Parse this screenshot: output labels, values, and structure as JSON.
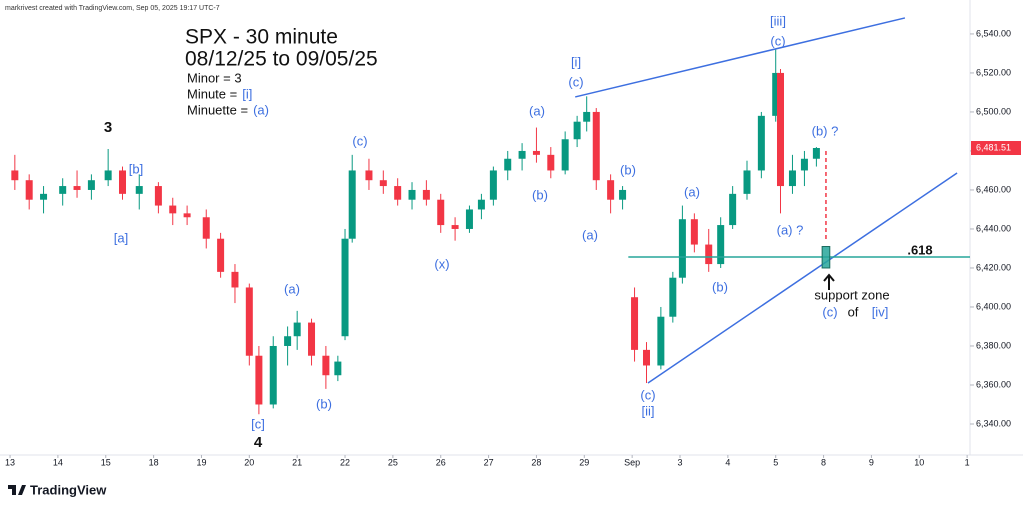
{
  "header": {
    "credit": "markrivest created with TradingView.com, Sep 05, 2025 19:17 UTC-7"
  },
  "chart_data": {
    "type": "candlestick",
    "title": "SPX - 30 minute",
    "subtitle": "08/12/25 to 09/05/25",
    "notes": [
      {
        "text": "Minor = 3"
      },
      {
        "text": "Minute =",
        "wave": "[i]"
      },
      {
        "text": "Minuette =",
        "wave": "(a)"
      }
    ],
    "up_color": "#089981",
    "down_color": "#f23645",
    "wave_color": "#3d6fe0",
    "x": [
      0.1,
      0.4,
      0.7,
      1.1,
      1.4,
      1.7,
      2.05,
      2.35,
      2.7,
      3.1,
      3.4,
      3.7,
      4.1,
      4.4,
      4.7,
      5.0,
      5.2,
      5.5,
      5.8,
      6.0,
      6.3,
      6.6,
      6.85,
      7.0,
      7.15,
      7.5,
      7.8,
      8.1,
      8.4,
      8.7,
      9.0,
      9.3,
      9.6,
      9.85,
      10.1,
      10.4,
      10.7,
      11.0,
      11.3,
      11.6,
      11.85,
      12.05,
      12.25,
      12.55,
      12.8,
      13.05,
      13.3,
      13.6,
      13.85,
      14.05,
      14.3,
      14.6,
      14.85,
      15.1,
      15.4,
      15.7,
      16.0,
      16.1,
      16.35,
      16.6,
      16.85
    ],
    "open": [
      6470,
      6465,
      6455,
      6458,
      6462,
      6460,
      6465,
      6470,
      6458,
      6462,
      6452,
      6448,
      6446,
      6435,
      6418,
      6410,
      6375,
      6350,
      6380,
      6385,
      6392,
      6375,
      6365,
      6385,
      6435,
      6470,
      6465,
      6462,
      6455,
      6460,
      6455,
      6442,
      6440,
      6450,
      6455,
      6470,
      6476,
      6480,
      6478,
      6470,
      6486,
      6495,
      6500,
      6465,
      6455,
      6405,
      6378,
      6370,
      6395,
      6415,
      6445,
      6432,
      6422,
      6442,
      6458,
      6470,
      6498,
      6520,
      6462,
      6470,
      6476
    ],
    "high": [
      6478,
      6468,
      6462,
      6466,
      6470,
      6468,
      6481,
      6472,
      6468,
      6464,
      6456,
      6452,
      6450,
      6438,
      6422,
      6412,
      6380,
      6385,
      6390,
      6398,
      6394,
      6380,
      6375,
      6440,
      6478,
      6476,
      6470,
      6466,
      6464,
      6465,
      6458,
      6446,
      6452,
      6458,
      6472,
      6480,
      6484,
      6492,
      6482,
      6490,
      6498,
      6508,
      6502,
      6468,
      6462,
      6410,
      6382,
      6400,
      6418,
      6452,
      6448,
      6440,
      6446,
      6462,
      6475,
      6500,
      6532,
      6522,
      6478,
      6480,
      6482
    ],
    "low": [
      6460,
      6450,
      6448,
      6452,
      6456,
      6455,
      6462,
      6455,
      6450,
      6448,
      6442,
      6442,
      6430,
      6415,
      6402,
      6370,
      6345,
      6348,
      6370,
      6378,
      6370,
      6358,
      6362,
      6383,
      6433,
      6460,
      6458,
      6452,
      6450,
      6452,
      6438,
      6434,
      6438,
      6445,
      6452,
      6465,
      6470,
      6474,
      6466,
      6468,
      6482,
      6490,
      6460,
      6448,
      6450,
      6372,
      6361,
      6368,
      6392,
      6412,
      6428,
      6418,
      6420,
      6440,
      6455,
      6466,
      6495,
      6448,
      6458,
      6462,
      6472
    ],
    "close": [
      6465,
      6455,
      6458,
      6462,
      6460,
      6465,
      6470,
      6458,
      6462,
      6452,
      6448,
      6446,
      6435,
      6418,
      6410,
      6375,
      6350,
      6380,
      6385,
      6392,
      6375,
      6365,
      6372,
      6435,
      6470,
      6465,
      6462,
      6455,
      6460,
      6455,
      6442,
      6440,
      6450,
      6455,
      6470,
      6476,
      6480,
      6478,
      6470,
      6486,
      6495,
      6500,
      6465,
      6455,
      6460,
      6378,
      6370,
      6395,
      6415,
      6445,
      6432,
      6422,
      6442,
      6458,
      6470,
      6498,
      6520,
      6462,
      6470,
      6476,
      6481.51
    ],
    "last_price": {
      "value": 6481.51,
      "label": "6,481.51"
    },
    "xlim": [
      -0.21,
      20.06
    ],
    "ylim": [
      6324.1,
      6557.4
    ],
    "xticks": [
      {
        "value": 0,
        "label": "13"
      },
      {
        "value": 1,
        "label": "14"
      },
      {
        "value": 2,
        "label": "15"
      },
      {
        "value": 3,
        "label": "18"
      },
      {
        "value": 4,
        "label": "19"
      },
      {
        "value": 5,
        "label": "20"
      },
      {
        "value": 6,
        "label": "21"
      },
      {
        "value": 7,
        "label": "22"
      },
      {
        "value": 8,
        "label": "25"
      },
      {
        "value": 9,
        "label": "26"
      },
      {
        "value": 10,
        "label": "27"
      },
      {
        "value": 11,
        "label": "28"
      },
      {
        "value": 12,
        "label": "29"
      },
      {
        "value": 13,
        "label": "Sep"
      },
      {
        "value": 14,
        "label": "3"
      },
      {
        "value": 15,
        "label": "4"
      },
      {
        "value": 16,
        "label": "5"
      },
      {
        "value": 17,
        "label": "8"
      },
      {
        "value": 18,
        "label": "9"
      },
      {
        "value": 19,
        "label": "10"
      },
      {
        "value": 20,
        "label": "1"
      }
    ],
    "yticks": [
      {
        "value": 6340,
        "label": "6,340.00"
      },
      {
        "value": 6360,
        "label": "6,360.00"
      },
      {
        "value": 6380,
        "label": "6,380.00"
      },
      {
        "value": 6400,
        "label": "6,400.00"
      },
      {
        "value": 6420,
        "label": "6,420.00"
      },
      {
        "value": 6440,
        "label": "6,440.00"
      },
      {
        "value": 6460,
        "label": "6,460.00"
      },
      {
        "value": 6480,
        "label": "6,480.00"
      },
      {
        "value": 6500,
        "label": "6,500.00"
      },
      {
        "value": 6520,
        "label": "6,520.00"
      },
      {
        "value": 6540,
        "label": "6,540.00"
      }
    ],
    "lines": [
      {
        "x": [
          11.81,
          18.7
        ],
        "y": [
          6507.7,
          6548.2
        ],
        "color": "#3d6fe0",
        "dashed": false
      },
      {
        "x": [
          13.33,
          19.79
        ],
        "y": [
          6361,
          6468.7
        ],
        "color": "#3d6fe0",
        "dashed": false
      },
      {
        "x": [
          12.92,
          20.06
        ],
        "y": [
          6425.6,
          6425.6
        ],
        "color": "#26a69a",
        "dashed": false
      },
      {
        "x": [
          17.05,
          17.05
        ],
        "y": [
          6480,
          6434
        ],
        "color": "#f23645",
        "dashed": true
      }
    ],
    "zone": {
      "x": [
        16.97,
        17.13
      ],
      "y": [
        6420,
        6431
      ],
      "color": "#26a69a"
    },
    "wave_labels": [
      {
        "text": "3",
        "color": "#111111"
      },
      {
        "text": "[b]",
        "color": "#3d6fe0"
      },
      {
        "text": "[a]",
        "color": "#3d6fe0"
      },
      {
        "text": "(a)",
        "color": "#3d6fe0"
      },
      {
        "text": "(b)",
        "color": "#3d6fe0"
      },
      {
        "text": "[c]",
        "color": "#3d6fe0"
      },
      {
        "text": "4",
        "color": "#111111"
      },
      {
        "text": "(c)",
        "color": "#3d6fe0"
      },
      {
        "text": "(x)",
        "color": "#3d6fe0"
      },
      {
        "text": "(a)",
        "color": "#3d6fe0"
      },
      {
        "text": "(b)",
        "color": "#3d6fe0"
      },
      {
        "text": "[i]",
        "color": "#3d6fe0"
      },
      {
        "text": "(c)",
        "color": "#3d6fe0"
      },
      {
        "text": "(b)",
        "color": "#3d6fe0"
      },
      {
        "text": "(a)",
        "color": "#3d6fe0"
      },
      {
        "text": "(a)",
        "color": "#3d6fe0"
      },
      {
        "text": "(b)",
        "color": "#3d6fe0"
      },
      {
        "text": "(c)",
        "color": "#3d6fe0"
      },
      {
        "text": "[ii]",
        "color": "#3d6fe0"
      },
      {
        "text": "[iii]",
        "color": "#3d6fe0"
      },
      {
        "text": "(c)",
        "color": "#3d6fe0"
      },
      {
        "text": "(b) ?",
        "color": "#3d6fe0"
      },
      {
        "text": "(a) ?",
        "color": "#3d6fe0"
      },
      {
        "text": ".618",
        "color": "#111111"
      },
      {
        "text": "support zone",
        "color": "#111111"
      },
      {
        "text": "(c)",
        "color": "#3d6fe0"
      },
      {
        "text": "of",
        "color": "#111111"
      },
      {
        "text": "[iv]",
        "color": "#3d6fe0"
      }
    ]
  },
  "footer": {
    "logo": "TradingView"
  }
}
